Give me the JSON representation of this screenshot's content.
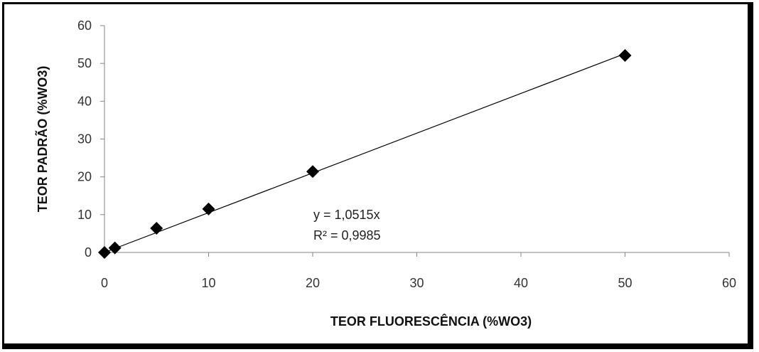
{
  "chart_data": {
    "type": "scatter",
    "title": "",
    "xlabel": "TEOR FLUORESCÊNCIA (%WO3)",
    "ylabel": "TEOR PADRÃO (%WO3)",
    "xlim": [
      0,
      60
    ],
    "ylim": [
      0,
      60
    ],
    "xticks": [
      "0",
      "10",
      "20",
      "30",
      "40",
      "50",
      "60"
    ],
    "yticks": [
      "0",
      "10",
      "20",
      "30",
      "40",
      "50",
      "60"
    ],
    "grid": false,
    "legend": "none",
    "series": [
      {
        "points": [
          {
            "x": 0,
            "y": 0
          },
          {
            "x": 1,
            "y": 1.2
          },
          {
            "x": 5,
            "y": 6.4
          },
          {
            "x": 10,
            "y": 11.5
          },
          {
            "x": 20,
            "y": 21.4
          },
          {
            "x": 50,
            "y": 52.1
          }
        ],
        "marker": "diamond",
        "color": "#000000"
      }
    ],
    "trendline": {
      "type": "linear-through-origin",
      "slope": 1.0515,
      "x_range": [
        0,
        50
      ],
      "equation": "y = 1,0515x",
      "r_squared": "R² = 0,9985",
      "color": "#000000"
    }
  }
}
